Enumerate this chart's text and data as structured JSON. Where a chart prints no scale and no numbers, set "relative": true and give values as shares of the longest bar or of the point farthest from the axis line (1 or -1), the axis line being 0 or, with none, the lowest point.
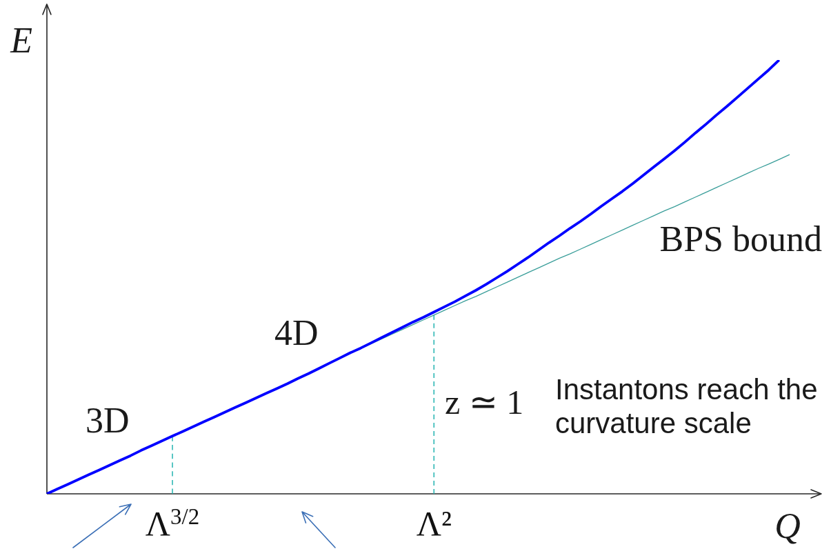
{
  "chart_data": {
    "type": "line",
    "relative": true,
    "xlabel": "Q",
    "ylabel": "E",
    "categories": [
      null,
      null,
      null,
      null,
      null,
      null,
      null,
      null,
      null,
      null,
      null,
      null,
      "Λ$^{3/2}$",
      null,
      null,
      null,
      null,
      null,
      null,
      null,
      null,
      null,
      null,
      null,
      null,
      null,
      null,
      null,
      null,
      null,
      null,
      null,
      null,
      null,
      null,
      null,
      null,
      "Λ²",
      null,
      null,
      null,
      null,
      null,
      null,
      null,
      null,
      null,
      null,
      null,
      null,
      null,
      null,
      null,
      null,
      null,
      null,
      null,
      null,
      null,
      null,
      null,
      null,
      null,
      null,
      null,
      null,
      null,
      null,
      null,
      null,
      null,
      null
    ],
    "series": [
      {
        "color": "#0000ff",
        "values": [
          0,
          0.011,
          0.022,
          0.033,
          0.044,
          0.055,
          0.066,
          0.077,
          0.088,
          0.1,
          0.111,
          0.122,
          0.133,
          0.144,
          0.155,
          0.166,
          0.177,
          0.188,
          0.199,
          0.21,
          0.221,
          0.232,
          0.243,
          0.254,
          0.266,
          0.277,
          0.289,
          0.301,
          0.313,
          0.325,
          0.336,
          0.348,
          0.36,
          0.372,
          0.384,
          0.396,
          0.407,
          0.419,
          0.431,
          0.443,
          0.456,
          0.469,
          0.483,
          0.498,
          0.513,
          0.529,
          0.545,
          0.562,
          0.579,
          0.595,
          0.612,
          0.628,
          0.645,
          0.663,
          0.68,
          0.697,
          0.715,
          0.734,
          0.753,
          0.772,
          0.791,
          0.811,
          0.832,
          0.852,
          0.873,
          0.893,
          0.914,
          0.935,
          0.956,
          0.977,
          1,
          null
        ]
      },
      {
        "name": "BPS bound",
        "color": "#3a9e9a",
        "values": [
          null,
          null,
          null,
          null,
          null,
          null,
          null,
          null,
          null,
          null,
          null,
          null,
          null,
          null,
          null,
          null,
          null,
          null,
          null,
          null,
          null,
          null,
          null,
          null,
          null,
          null,
          null,
          null,
          null,
          null,
          0.335,
          0.346,
          0.357,
          0.368,
          0.379,
          0.39,
          0.401,
          0.412,
          0.423,
          0.434,
          0.445,
          0.455,
          0.466,
          0.477,
          0.488,
          0.499,
          0.51,
          0.521,
          0.532,
          0.543,
          0.553,
          0.564,
          0.575,
          0.586,
          0.597,
          0.608,
          0.619,
          0.63,
          0.641,
          0.652,
          0.662,
          0.673,
          0.684,
          0.695,
          0.706,
          0.717,
          0.728,
          0.739,
          0.75,
          0.76,
          0.771,
          0.782
        ]
      },
      {
        "color": "#22b3b0",
        "line_style": "dashed",
        "x": [
          "Λ$^{3/2}$",
          "Λ$^{3/2}$"
        ],
        "values": [
          0,
          0.133
        ]
      },
      {
        "color": "#22b3b0",
        "line_style": "dashed",
        "x": [
          "Λ²",
          "Λ²"
        ],
        "values": [
          0,
          0.412
        ]
      }
    ],
    "annotations": [
      "3D",
      "4D",
      "z ≃ 1",
      "Instantons reach the curvature scale"
    ]
  }
}
